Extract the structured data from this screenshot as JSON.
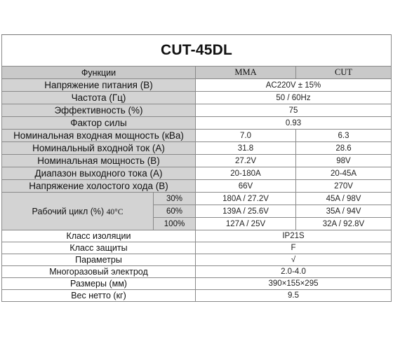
{
  "title": "CUT-45DL",
  "header": {
    "label": "Функции",
    "mma": "MMA",
    "cut": "CUT"
  },
  "rows_shared": [
    {
      "label": "Напряжение питания (В)",
      "value": "AC220V ± 15%"
    },
    {
      "label": "Частота (Гц)",
      "value": "50 / 60Hz"
    },
    {
      "label": "Эффективность (%)",
      "value": "75"
    },
    {
      "label": "Фактор силы",
      "value": "0.93"
    }
  ],
  "rows_split": [
    {
      "label": "Номинальная входная мощность (кВа)",
      "mma": "7.0",
      "cut": "6.3"
    },
    {
      "label": "Номинальный входной ток (А)",
      "mma": "31.8",
      "cut": "28.6"
    },
    {
      "label": "Номинальная мощность (В)",
      "mma": "27.2V",
      "cut": "98V"
    },
    {
      "label": "Диапазон выходного тока (А)",
      "mma": "20-180A",
      "cut": "20-45A"
    },
    {
      "label": "Напряжение холостого хода (В)",
      "mma": "66V",
      "cut": "270V"
    }
  ],
  "duty_cycle": {
    "label": "Рабочий цикл (%)",
    "temp": "40°C",
    "rows": [
      {
        "pct": "30%",
        "mma": "180A / 27.2V",
        "cut": "45A / 98V"
      },
      {
        "pct": "60%",
        "mma": "139A / 25.6V",
        "cut": "35A / 94V"
      },
      {
        "pct": "100%",
        "mma": "127A / 25V",
        "cut": "32A / 92.8V"
      }
    ]
  },
  "rows_bottom": [
    {
      "label": "Класс изоляции",
      "value": "IP21S"
    },
    {
      "label": "Класс защиты",
      "value": "F"
    },
    {
      "label": "Параметры",
      "value": "√"
    },
    {
      "label": "Многоразовый электрод",
      "value": "2.0-4.0"
    },
    {
      "label": "Размеры (мм)",
      "value": "390×155×295"
    },
    {
      "label": "Вес нетто (кг)",
      "value": "9.5"
    }
  ]
}
